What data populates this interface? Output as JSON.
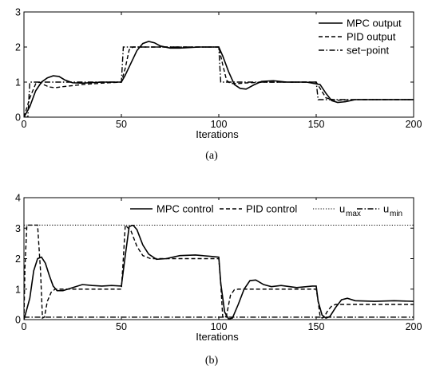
{
  "chart_data": [
    {
      "type": "line",
      "caption": "(a)",
      "xlabel": "Iterations",
      "ylabel": "",
      "xlim": [
        0,
        200
      ],
      "ylim": [
        0,
        3
      ],
      "xticks": [
        0,
        50,
        100,
        150,
        200
      ],
      "yticks": [
        0,
        1,
        2,
        3
      ],
      "legend_position": "top-right",
      "series": [
        {
          "name": "MPC output",
          "style": "solid",
          "x": [
            0,
            3,
            6,
            9,
            12,
            15,
            18,
            21,
            25,
            30,
            40,
            50,
            52,
            55,
            58,
            61,
            64,
            67,
            70,
            75,
            80,
            90,
            100,
            102,
            105,
            108,
            111,
            114,
            118,
            122,
            128,
            135,
            145,
            152,
            155,
            158,
            161,
            165,
            170,
            180,
            200
          ],
          "y": [
            0,
            0.3,
            0.75,
            1.0,
            1.12,
            1.18,
            1.16,
            1.06,
            0.98,
            0.97,
            1.0,
            1.0,
            1.2,
            1.55,
            1.9,
            2.1,
            2.16,
            2.12,
            2.03,
            1.97,
            1.97,
            2.0,
            2.0,
            1.75,
            1.3,
            0.93,
            0.82,
            0.8,
            0.92,
            1.02,
            1.04,
            1.0,
            1.0,
            0.93,
            0.68,
            0.47,
            0.42,
            0.44,
            0.5,
            0.5,
            0.5
          ]
        },
        {
          "name": "PID output",
          "style": "dashed",
          "x": [
            0,
            3,
            6,
            8,
            10,
            13,
            16,
            20,
            30,
            40,
            50,
            52,
            54,
            56,
            60,
            65,
            75,
            100,
            102,
            104,
            106,
            110,
            115,
            125,
            150,
            152,
            155,
            160,
            170,
            200
          ],
          "y": [
            0,
            0.55,
            0.95,
            1.0,
            0.93,
            0.86,
            0.84,
            0.87,
            0.93,
            0.97,
            1.0,
            1.4,
            1.92,
            2.0,
            2.0,
            2.0,
            2.0,
            2.0,
            1.5,
            1.05,
            0.96,
            0.96,
            0.98,
            1.0,
            1.0,
            0.82,
            0.55,
            0.48,
            0.5,
            0.5
          ]
        },
        {
          "name": "set−point",
          "style": "dashdot",
          "x": [
            0,
            2,
            3,
            50,
            51,
            100,
            101,
            150,
            151,
            200
          ],
          "y": [
            0,
            0,
            1,
            1,
            2,
            2,
            1,
            1,
            0.5,
            0.5
          ]
        }
      ]
    },
    {
      "type": "line",
      "caption": "(b)",
      "xlabel": "Iterations",
      "ylabel": "",
      "xlim": [
        0,
        200
      ],
      "ylim": [
        0,
        4
      ],
      "xticks": [
        0,
        50,
        100,
        150,
        200
      ],
      "yticks": [
        0,
        1,
        2,
        3,
        4
      ],
      "legend_position": "top",
      "series": [
        {
          "name": "MPC control",
          "style": "solid",
          "x": [
            0,
            3,
            5,
            7,
            9,
            11,
            13,
            15,
            17,
            20,
            25,
            30,
            35,
            40,
            45,
            50,
            52,
            54,
            56,
            58,
            61,
            64,
            68,
            73,
            80,
            88,
            95,
            100,
            101,
            103,
            105,
            107,
            110,
            113,
            116,
            119,
            123,
            127,
            132,
            140,
            148,
            150,
            151,
            153,
            155,
            157,
            160,
            163,
            166,
            170,
            180,
            190,
            200
          ],
          "y": [
            0,
            0.7,
            1.6,
            2.0,
            2.05,
            1.85,
            1.45,
            1.1,
            0.95,
            0.95,
            1.05,
            1.15,
            1.12,
            1.1,
            1.12,
            1.1,
            2.1,
            3.05,
            3.1,
            2.95,
            2.45,
            2.15,
            1.98,
            2.0,
            2.1,
            2.12,
            2.08,
            2.05,
            1.2,
            0.25,
            0.02,
            0.05,
            0.5,
            1.0,
            1.28,
            1.3,
            1.15,
            1.08,
            1.12,
            1.05,
            1.1,
            1.1,
            0.6,
            0.15,
            0.05,
            0.1,
            0.4,
            0.65,
            0.7,
            0.62,
            0.6,
            0.62,
            0.6
          ]
        },
        {
          "name": "PID control",
          "style": "dashed",
          "x": [
            0,
            0.5,
            1.5,
            3,
            5,
            7,
            8.5,
            9.5,
            10.5,
            12,
            14,
            16,
            20,
            30,
            50,
            51,
            52,
            55,
            58,
            61,
            65,
            70,
            100,
            101,
            102,
            103,
            104,
            106,
            108,
            110,
            150,
            151,
            152,
            153,
            154,
            156,
            158,
            160,
            200
          ],
          "y": [
            0,
            1.7,
            3.1,
            3.1,
            3.1,
            3.1,
            1.6,
            0.05,
            0.08,
            0.6,
            0.9,
            1.0,
            1.0,
            1.0,
            1.0,
            2.0,
            3.1,
            2.9,
            2.4,
            2.1,
            2.0,
            2.0,
            2.0,
            1.2,
            0.1,
            0.05,
            0.15,
            0.8,
            0.98,
            1.0,
            1.0,
            0.6,
            0.1,
            0.05,
            0.08,
            0.3,
            0.45,
            0.5,
            0.5
          ]
        },
        {
          "name": "u_max",
          "label_main": "u",
          "label_sub": "max",
          "style": "dotted",
          "x": [
            0,
            200
          ],
          "y": [
            3.1,
            3.1
          ]
        },
        {
          "name": "u_min",
          "label_main": "u",
          "label_sub": "min",
          "style": "dashdot",
          "x": [
            0,
            200
          ],
          "y": [
            0.08,
            0.08
          ]
        }
      ]
    }
  ]
}
